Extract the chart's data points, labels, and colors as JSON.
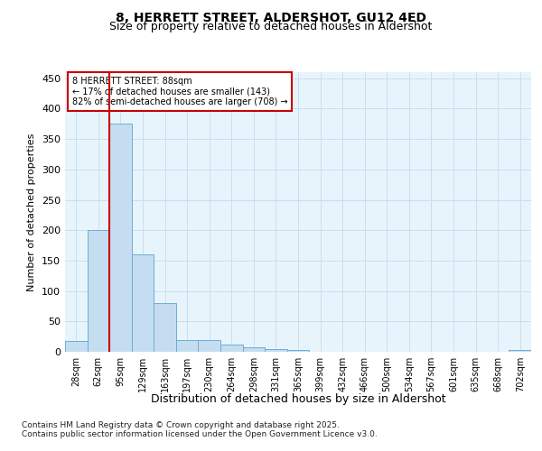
{
  "title1": "8, HERRETT STREET, ALDERSHOT, GU12 4ED",
  "title2": "Size of property relative to detached houses in Aldershot",
  "xlabel": "Distribution of detached houses by size in Aldershot",
  "ylabel": "Number of detached properties",
  "categories": [
    "28sqm",
    "62sqm",
    "95sqm",
    "129sqm",
    "163sqm",
    "197sqm",
    "230sqm",
    "264sqm",
    "298sqm",
    "331sqm",
    "365sqm",
    "399sqm",
    "432sqm",
    "466sqm",
    "500sqm",
    "534sqm",
    "567sqm",
    "601sqm",
    "635sqm",
    "668sqm",
    "702sqm"
  ],
  "values": [
    18,
    200,
    375,
    160,
    80,
    20,
    20,
    12,
    7,
    5,
    3,
    0,
    0,
    0,
    0,
    0,
    0,
    0,
    0,
    0,
    3
  ],
  "bar_color": "#c5ddf0",
  "bar_edge_color": "#6aaed6",
  "grid_color": "#c8dff0",
  "background_color": "#e8f4fc",
  "vline_x": 1.5,
  "vline_color": "#cc0000",
  "annotation_text": "8 HERRETT STREET: 88sqm\n← 17% of detached houses are smaller (143)\n82% of semi-detached houses are larger (708) →",
  "annotation_box_color": "#cc0000",
  "ylim": [
    0,
    460
  ],
  "yticks": [
    0,
    50,
    100,
    150,
    200,
    250,
    300,
    350,
    400,
    450
  ],
  "footnote1": "Contains HM Land Registry data © Crown copyright and database right 2025.",
  "footnote2": "Contains public sector information licensed under the Open Government Licence v3.0."
}
